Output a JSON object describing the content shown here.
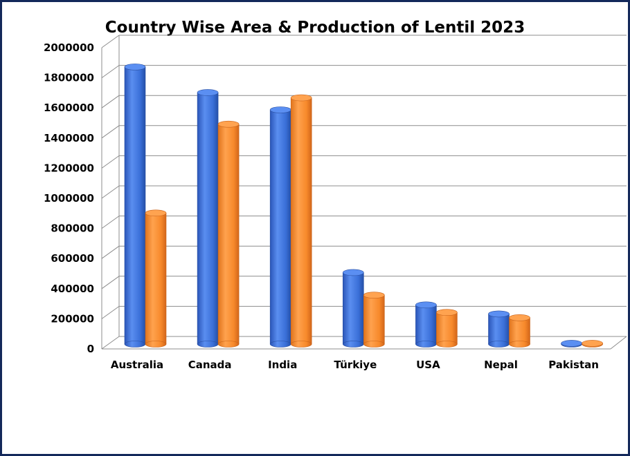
{
  "chart_data": {
    "type": "bar",
    "title": "Country Wise Area & Production of Lentil 2023",
    "xlabel": "",
    "ylabel": "",
    "categories": [
      "Australia",
      "Canada",
      "India",
      "Türkiye",
      "USA",
      "Nepal",
      "Pakistan"
    ],
    "series": [
      {
        "values": [
          1840000,
          1670000,
          1555000,
          475000,
          260000,
          200000,
          5000
        ],
        "color": "#3a6fd8"
      },
      {
        "values": [
          870000,
          1460000,
          1635000,
          325000,
          210000,
          175000,
          5000
        ],
        "color": "#f7892b"
      }
    ],
    "ylim": [
      0,
      2000000
    ],
    "yticks": [
      "0",
      "200000",
      "400000",
      "600000",
      "800000",
      "1000000",
      "1200000",
      "1400000",
      "1600000",
      "1800000",
      "2000000"
    ],
    "grid": true,
    "legend": "none",
    "style": "3d-cylinder"
  }
}
